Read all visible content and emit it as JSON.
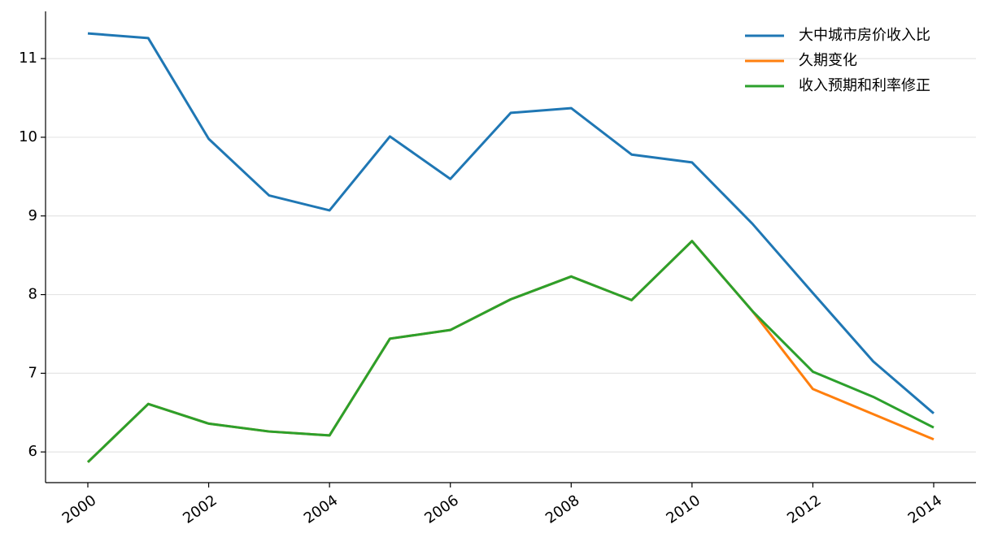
{
  "chart_data": {
    "type": "line",
    "x": [
      2000,
      2001,
      2002,
      2003,
      2004,
      2005,
      2006,
      2007,
      2008,
      2009,
      2010,
      2011,
      2012,
      2013,
      2014
    ],
    "series": [
      {
        "name": "大中城市房价收入比",
        "color": "#1f77b4",
        "values": [
          11.32,
          11.26,
          9.98,
          9.26,
          9.07,
          10.01,
          9.47,
          10.31,
          10.37,
          9.78,
          9.68,
          8.9,
          8.02,
          7.15,
          6.49
        ]
      },
      {
        "name": "久期变化",
        "color": "#ff7f0e",
        "values": [
          5.87,
          6.61,
          6.36,
          6.26,
          6.21,
          7.44,
          7.55,
          7.94,
          8.23,
          7.93,
          8.68,
          7.79,
          6.8,
          6.48,
          6.16
        ]
      },
      {
        "name": "收入预期和利率修正",
        "color": "#2ca02c",
        "values": [
          5.87,
          6.61,
          6.36,
          6.26,
          6.21,
          7.44,
          7.55,
          7.94,
          8.23,
          7.93,
          8.68,
          7.79,
          7.02,
          6.7,
          6.31
        ]
      }
    ],
    "xlim": [
      1999.3,
      2014.7
    ],
    "xticks": [
      2000,
      2002,
      2004,
      2006,
      2008,
      2010,
      2012,
      2014
    ],
    "ylim": [
      5.61,
      11.6
    ],
    "yticks": [
      6,
      7,
      8,
      9,
      10,
      11
    ],
    "grid": true,
    "legend": "upper right"
  }
}
